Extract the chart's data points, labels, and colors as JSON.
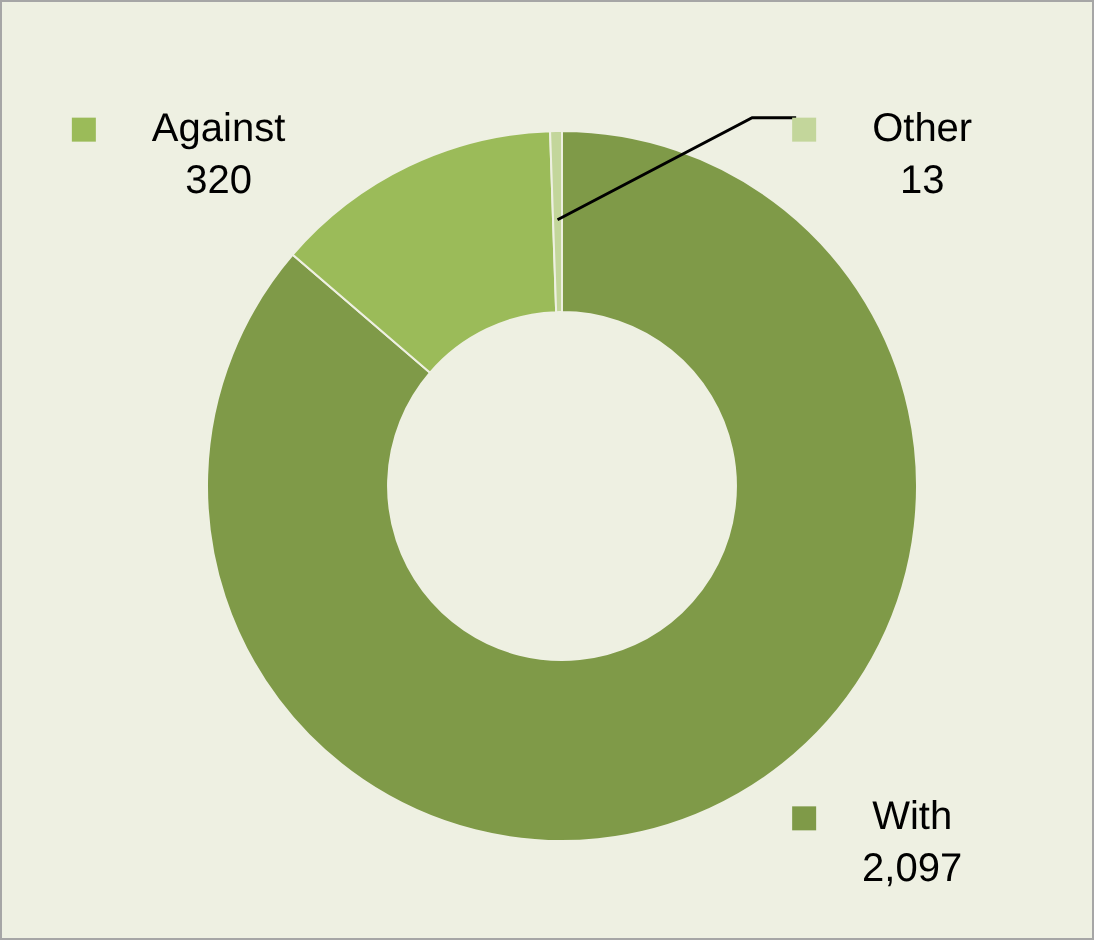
{
  "chart_data": {
    "type": "donut",
    "categories": [
      "With",
      "Against",
      "Other"
    ],
    "values": [
      2097,
      320,
      13
    ],
    "colors": [
      "#7f9a48",
      "#9bbb59",
      "#c3d69b"
    ],
    "value_labels": [
      "2,097",
      "320",
      "13"
    ],
    "legend": "top"
  }
}
